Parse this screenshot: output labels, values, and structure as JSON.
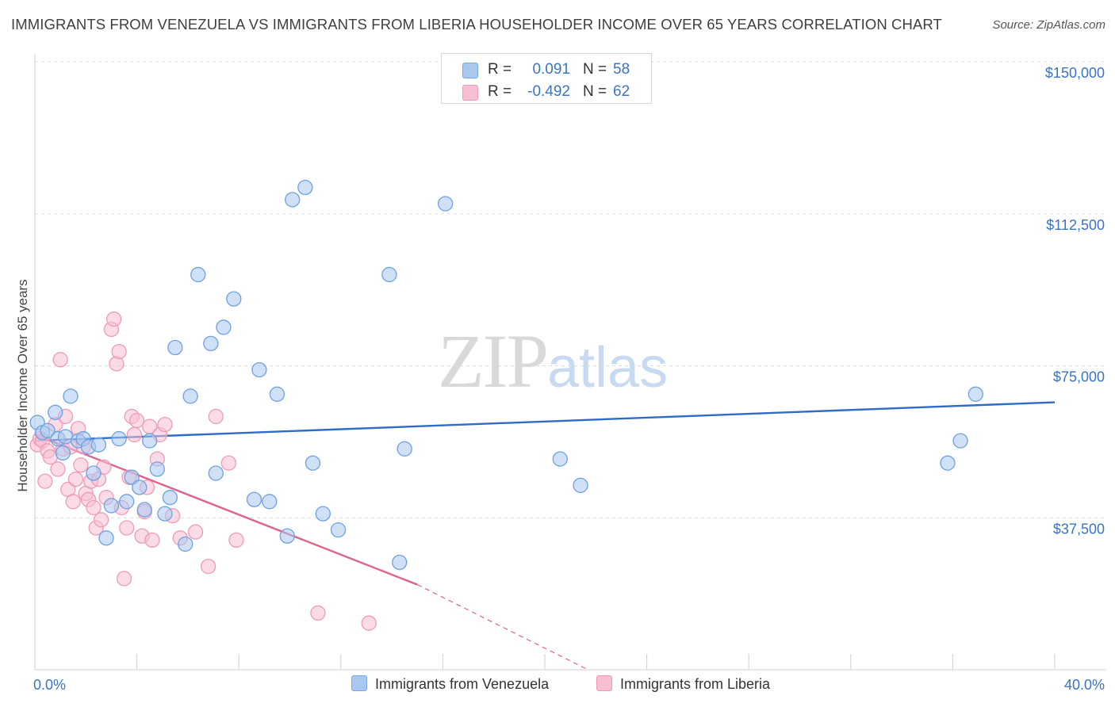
{
  "title": "IMMIGRANTS FROM VENEZUELA VS IMMIGRANTS FROM LIBERIA HOUSEHOLDER INCOME OVER 65 YEARS CORRELATION CHART",
  "source": "Source: ZipAtlas.com",
  "watermark": {
    "zip": "ZIP",
    "atlas": "atlas"
  },
  "legend": {
    "rows": [
      {
        "r_label": "R =",
        "r_value": "0.091",
        "n_label": "N =",
        "n_value": "58",
        "color": "#a9c8f0",
        "border": "#7ba7e0"
      },
      {
        "r_label": "R =",
        "r_value": "-0.492",
        "n_label": "N =",
        "n_value": "62",
        "color": "#f8bfd1",
        "border": "#ef9ab6"
      }
    ]
  },
  "bottom_legend": [
    {
      "label": "Immigrants from Venezuela",
      "color": "#a9c8f0",
      "border": "#7ba7e0"
    },
    {
      "label": "Immigrants from Liberia",
      "color": "#f8bfd1",
      "border": "#ef9ab6"
    }
  ],
  "chart_data": {
    "type": "scatter",
    "ylabel": "Householder Income Over 65 years",
    "xlim": [
      0,
      40
    ],
    "ylim": [
      0,
      150000
    ],
    "x_tick_labels": [
      "0.0%",
      "40.0%"
    ],
    "y_ticks": [
      37500,
      75000,
      112500,
      150000
    ],
    "y_tick_labels": [
      "$37,500",
      "$75,000",
      "$112,500",
      "$150,000"
    ],
    "grid": true,
    "series": [
      {
        "name": "Immigrants from Venezuela",
        "color": "#6fa0e0",
        "fill": "#a9c8f0",
        "trend": {
          "x": [
            0,
            40
          ],
          "y": [
            56500,
            66000
          ],
          "color": "#2e6cc7"
        },
        "points": [
          [
            0.1,
            61000
          ],
          [
            0.3,
            58500
          ],
          [
            0.5,
            59000
          ],
          [
            0.8,
            63500
          ],
          [
            0.9,
            57000
          ],
          [
            1.1,
            53500
          ],
          [
            1.2,
            57500
          ],
          [
            1.4,
            67500
          ],
          [
            1.7,
            56500
          ],
          [
            1.9,
            57000
          ],
          [
            2.1,
            55000
          ],
          [
            2.3,
            48500
          ],
          [
            2.5,
            55500
          ],
          [
            2.8,
            32500
          ],
          [
            3.0,
            40500
          ],
          [
            3.3,
            57000
          ],
          [
            3.6,
            41500
          ],
          [
            3.8,
            47500
          ],
          [
            4.1,
            45000
          ],
          [
            4.3,
            39500
          ],
          [
            4.5,
            56500
          ],
          [
            4.8,
            49500
          ],
          [
            5.1,
            38500
          ],
          [
            5.3,
            42500
          ],
          [
            5.5,
            79500
          ],
          [
            5.9,
            31000
          ],
          [
            6.1,
            67500
          ],
          [
            6.4,
            97500
          ],
          [
            6.9,
            80500
          ],
          [
            7.1,
            48500
          ],
          [
            7.4,
            84500
          ],
          [
            7.8,
            91500
          ],
          [
            8.6,
            42000
          ],
          [
            8.8,
            74000
          ],
          [
            9.2,
            41500
          ],
          [
            9.5,
            68000
          ],
          [
            9.9,
            33000
          ],
          [
            10.1,
            116000
          ],
          [
            10.6,
            119000
          ],
          [
            10.9,
            51000
          ],
          [
            11.3,
            38500
          ],
          [
            11.9,
            34500
          ],
          [
            13.9,
            97500
          ],
          [
            14.3,
            26500
          ],
          [
            14.5,
            54500
          ],
          [
            16.1,
            115000
          ],
          [
            20.6,
            52000
          ],
          [
            21.4,
            45500
          ],
          [
            35.8,
            51000
          ],
          [
            36.3,
            56500
          ],
          [
            36.9,
            68000
          ]
        ]
      },
      {
        "name": "Immigrants from Liberia",
        "color": "#ef9ab6",
        "fill": "#f8bfd1",
        "trend": {
          "x": [
            0,
            15
          ],
          "y": [
            58000,
            21000
          ],
          "color": "#e0608e"
        },
        "trend_dashed": {
          "x": [
            15,
            21.7
          ],
          "y": [
            21000,
            0
          ]
        },
        "points": [
          [
            0.1,
            55500
          ],
          [
            0.2,
            57000
          ],
          [
            0.3,
            56500
          ],
          [
            0.4,
            46500
          ],
          [
            0.5,
            54000
          ],
          [
            0.6,
            52500
          ],
          [
            0.8,
            60500
          ],
          [
            0.9,
            49500
          ],
          [
            1.0,
            76500
          ],
          [
            1.1,
            54500
          ],
          [
            1.2,
            62500
          ],
          [
            1.3,
            44500
          ],
          [
            1.4,
            55000
          ],
          [
            1.5,
            41500
          ],
          [
            1.6,
            47000
          ],
          [
            1.7,
            59500
          ],
          [
            1.8,
            50500
          ],
          [
            1.9,
            55000
          ],
          [
            2.0,
            43500
          ],
          [
            2.1,
            42000
          ],
          [
            2.2,
            46500
          ],
          [
            2.3,
            40000
          ],
          [
            2.4,
            35000
          ],
          [
            2.5,
            47000
          ],
          [
            2.6,
            37000
          ],
          [
            2.7,
            50000
          ],
          [
            2.8,
            42500
          ],
          [
            3.0,
            84000
          ],
          [
            3.1,
            86500
          ],
          [
            3.2,
            75500
          ],
          [
            3.3,
            78500
          ],
          [
            3.4,
            40000
          ],
          [
            3.5,
            22500
          ],
          [
            3.6,
            35000
          ],
          [
            3.7,
            47500
          ],
          [
            3.8,
            62500
          ],
          [
            3.9,
            58000
          ],
          [
            4.0,
            61500
          ],
          [
            4.2,
            33000
          ],
          [
            4.3,
            39000
          ],
          [
            4.4,
            45000
          ],
          [
            4.5,
            60000
          ],
          [
            4.6,
            32000
          ],
          [
            4.8,
            52000
          ],
          [
            4.9,
            58000
          ],
          [
            5.1,
            60500
          ],
          [
            5.4,
            38000
          ],
          [
            5.7,
            32500
          ],
          [
            6.3,
            34000
          ],
          [
            6.8,
            25500
          ],
          [
            7.1,
            62500
          ],
          [
            7.6,
            51000
          ],
          [
            7.9,
            32000
          ],
          [
            11.1,
            14000
          ],
          [
            13.1,
            11500
          ]
        ]
      }
    ]
  }
}
